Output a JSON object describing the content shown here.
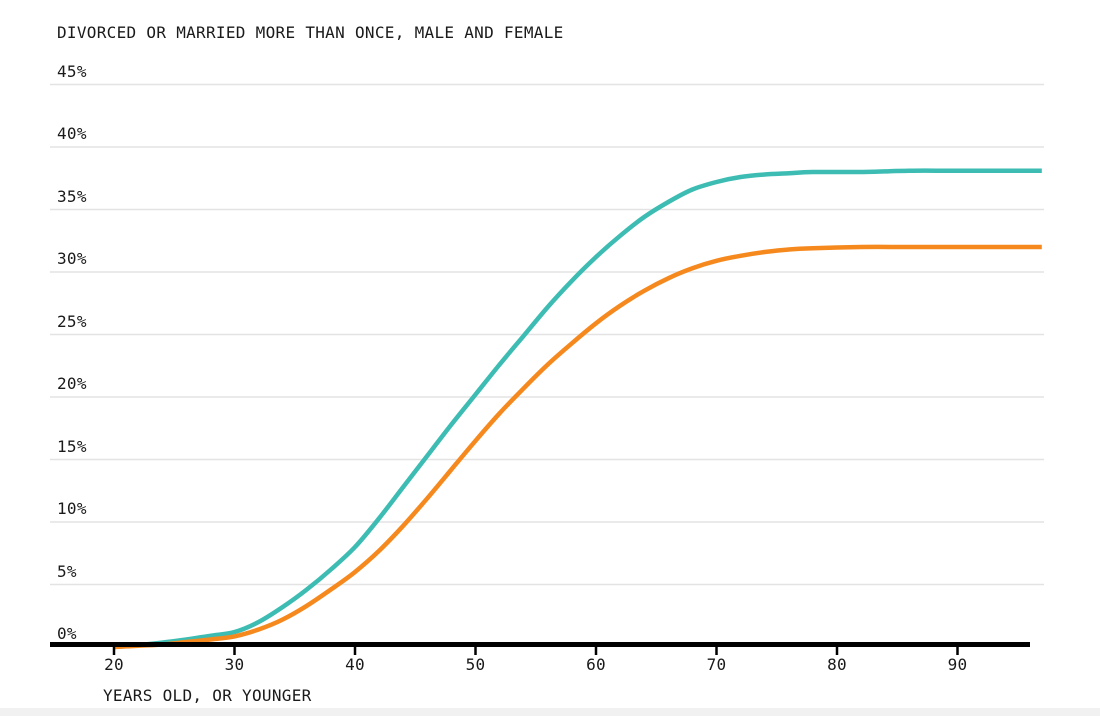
{
  "colors": {
    "background": "#ffffff",
    "text": "#1a1a1a",
    "gridline": "#e3e3e3",
    "axis": "#000000",
    "series_teal": "#3cbcb2",
    "series_orange": "#f6891e",
    "bottom_strip": "#f1f1f1"
  },
  "chart_data": {
    "type": "line",
    "title": "DIVORCED OR MARRIED MORE THAN ONCE, MALE AND FEMALE",
    "xlabel": "YEARS OLD, OR YOUNGER",
    "ylabel": "",
    "xlim": [
      15,
      97.5
    ],
    "ylim": [
      0,
      45
    ],
    "grid": "horizontal-only",
    "legend": "none-visible",
    "x_ticks": [
      {
        "value": 20,
        "label": "20"
      },
      {
        "value": 30,
        "label": "30"
      },
      {
        "value": 40,
        "label": "40"
      },
      {
        "value": 50,
        "label": "50"
      },
      {
        "value": 60,
        "label": "60"
      },
      {
        "value": 70,
        "label": "70"
      },
      {
        "value": 80,
        "label": "80"
      },
      {
        "value": 90,
        "label": "90"
      }
    ],
    "y_ticks": [
      {
        "value": 0,
        "label": "0%"
      },
      {
        "value": 5,
        "label": "5%"
      },
      {
        "value": 10,
        "label": "10%"
      },
      {
        "value": 15,
        "label": "15%"
      },
      {
        "value": 20,
        "label": "20%"
      },
      {
        "value": 25,
        "label": "25%"
      },
      {
        "value": 30,
        "label": "30%"
      },
      {
        "value": 35,
        "label": "35%"
      },
      {
        "value": 40,
        "label": "40%"
      },
      {
        "value": 45,
        "label": "45%"
      }
    ],
    "series": [
      {
        "name": "teal-line",
        "color": "#3cbcb2",
        "plateau_pct": 38.1,
        "points": [
          [
            20,
            0
          ],
          [
            22,
            0.15
          ],
          [
            24,
            0.35
          ],
          [
            26,
            0.6
          ],
          [
            28,
            0.9
          ],
          [
            30,
            1.2
          ],
          [
            32,
            2.0
          ],
          [
            34,
            3.2
          ],
          [
            36,
            4.6
          ],
          [
            38,
            6.2
          ],
          [
            40,
            8.0
          ],
          [
            42,
            10.3
          ],
          [
            44,
            12.8
          ],
          [
            46,
            15.3
          ],
          [
            48,
            17.8
          ],
          [
            50,
            20.2
          ],
          [
            52,
            22.6
          ],
          [
            54,
            24.9
          ],
          [
            56,
            27.2
          ],
          [
            58,
            29.3
          ],
          [
            60,
            31.2
          ],
          [
            62,
            32.9
          ],
          [
            64,
            34.4
          ],
          [
            66,
            35.6
          ],
          [
            68,
            36.6
          ],
          [
            70,
            37.2
          ],
          [
            72,
            37.6
          ],
          [
            74,
            37.8
          ],
          [
            76,
            37.9
          ],
          [
            78,
            38.0
          ],
          [
            82,
            38.0
          ],
          [
            86,
            38.1
          ],
          [
            90,
            38.1
          ],
          [
            97,
            38.1
          ]
        ]
      },
      {
        "name": "orange-line",
        "color": "#f6891e",
        "plateau_pct": 32.0,
        "points": [
          [
            20,
            0
          ],
          [
            22,
            0.1
          ],
          [
            24,
            0.2
          ],
          [
            26,
            0.4
          ],
          [
            28,
            0.6
          ],
          [
            30,
            0.85
          ],
          [
            32,
            1.4
          ],
          [
            34,
            2.2
          ],
          [
            36,
            3.3
          ],
          [
            38,
            4.6
          ],
          [
            40,
            6.0
          ],
          [
            42,
            7.7
          ],
          [
            44,
            9.7
          ],
          [
            46,
            11.9
          ],
          [
            48,
            14.2
          ],
          [
            50,
            16.5
          ],
          [
            52,
            18.7
          ],
          [
            54,
            20.7
          ],
          [
            56,
            22.6
          ],
          [
            58,
            24.3
          ],
          [
            60,
            25.9
          ],
          [
            62,
            27.3
          ],
          [
            64,
            28.5
          ],
          [
            66,
            29.5
          ],
          [
            68,
            30.3
          ],
          [
            70,
            30.9
          ],
          [
            72,
            31.3
          ],
          [
            74,
            31.6
          ],
          [
            76,
            31.8
          ],
          [
            78,
            31.9
          ],
          [
            82,
            32.0
          ],
          [
            86,
            32.0
          ],
          [
            90,
            32.0
          ],
          [
            97,
            32.0
          ]
        ]
      }
    ]
  }
}
